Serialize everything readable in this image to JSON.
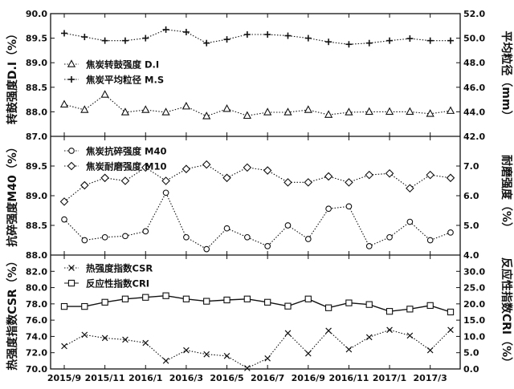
{
  "chart_data": {
    "type": "line",
    "x_labels": [
      "2015/9",
      "2015/11",
      "2016/1",
      "2016/3",
      "2016/5",
      "2016/7",
      "2016/9",
      "2016/11",
      "2017/1",
      "2017/3"
    ],
    "panels": [
      {
        "left_label": "转鼓强度D.I（%）",
        "right_label": "平均粒径（mm）",
        "left_ticks": [
          "87.0",
          "88.0",
          "88.5",
          "89.0",
          "89.5",
          "90.0"
        ],
        "right_ticks": [
          "42.0",
          "44.0",
          "46.0",
          "48.0",
          "50.0",
          "52.0"
        ],
        "left_ylim": [
          87.0,
          90.0
        ],
        "right_ylim": [
          42.0,
          52.0
        ],
        "series": [
          {
            "name": "焦炭转鼓强度 D.I",
            "axis": "left",
            "marker": "triangle",
            "line": "dotted",
            "values": [
              88.15,
              88.04,
              88.35,
              87.98,
              88.04,
              87.98,
              88.11,
              87.82,
              88.06,
              87.84,
              87.98,
              87.98,
              88.04,
              87.88,
              87.98,
              88.0,
              88.0,
              88.0,
              87.92,
              88.02
            ]
          },
          {
            "name": "焦炭平均粒径 M.S",
            "axis": "right",
            "marker": "plus",
            "line": "dotted",
            "values": [
              50.4,
              50.1,
              49.8,
              49.8,
              50.0,
              50.7,
              50.5,
              49.6,
              49.9,
              50.3,
              50.3,
              50.2,
              50.0,
              49.7,
              49.5,
              49.6,
              49.8,
              49.97,
              49.8,
              49.8
            ]
          }
        ]
      },
      {
        "left_label": "抗碎强度M40（%）",
        "right_label": "耐磨强度（%）",
        "left_ticks": [
          "88.0",
          "88.5",
          "89.0",
          "89.5",
          "90.0"
        ],
        "right_ticks": [
          "4.0",
          "5.0",
          "6.0",
          "7.0",
          "8.0"
        ],
        "left_ylim": [
          88.0,
          90.0
        ],
        "right_ylim": [
          4.0,
          8.0
        ],
        "series": [
          {
            "name": "焦炭抗碎强度 M40",
            "axis": "left",
            "marker": "circle",
            "line": "dotted",
            "values": [
              88.6,
              88.25,
              88.3,
              88.32,
              88.4,
              89.05,
              88.3,
              88.1,
              88.45,
              88.3,
              88.15,
              88.5,
              88.27,
              88.78,
              88.82,
              88.15,
              88.3,
              88.56,
              88.25,
              88.38
            ]
          },
          {
            "name": "焦炭耐磨强度 M10",
            "axis": "right",
            "marker": "diamond",
            "line": "dotted",
            "values": [
              5.8,
              6.35,
              6.6,
              6.5,
              6.95,
              6.5,
              6.9,
              7.05,
              6.6,
              6.95,
              6.85,
              6.45,
              6.45,
              6.65,
              6.45,
              6.7,
              6.75,
              6.25,
              6.7,
              6.6
            ]
          }
        ]
      },
      {
        "left_label": "热强度指数CSR（%）",
        "right_label": "反应性指数CRI（%）",
        "left_ticks": [
          "70.0",
          "72.0",
          "74.0",
          "76.0",
          "78.0",
          "80.0",
          "82.0",
          "84.0"
        ],
        "right_ticks": [
          "0.0",
          "5.0",
          "10.0",
          "15.0",
          "20.0",
          "25.0",
          "30.0",
          "35.0"
        ],
        "left_ylim": [
          70.0,
          84.0
        ],
        "right_ylim": [
          0.0,
          35.0
        ],
        "series": [
          {
            "name": "热强度指数CSR",
            "axis": "left",
            "marker": "x",
            "line": "dotted",
            "values": [
              72.8,
              74.2,
              73.8,
              73.6,
              73.2,
              71.0,
              72.3,
              71.8,
              71.6,
              70.1,
              71.3,
              74.4,
              71.9,
              74.7,
              72.4,
              73.9,
              74.8,
              74.1,
              72.3,
              74.8
            ]
          },
          {
            "name": "反应性指数CRI",
            "axis": "right",
            "marker": "square",
            "line": "solid",
            "values": [
              19.2,
              19.2,
              20.5,
              21.5,
              22.0,
              22.5,
              21.5,
              20.8,
              21.2,
              21.5,
              20.5,
              19.3,
              21.5,
              18.8,
              20.3,
              19.8,
              17.7,
              18.4,
              19.5,
              17.5
            ]
          }
        ]
      }
    ]
  }
}
